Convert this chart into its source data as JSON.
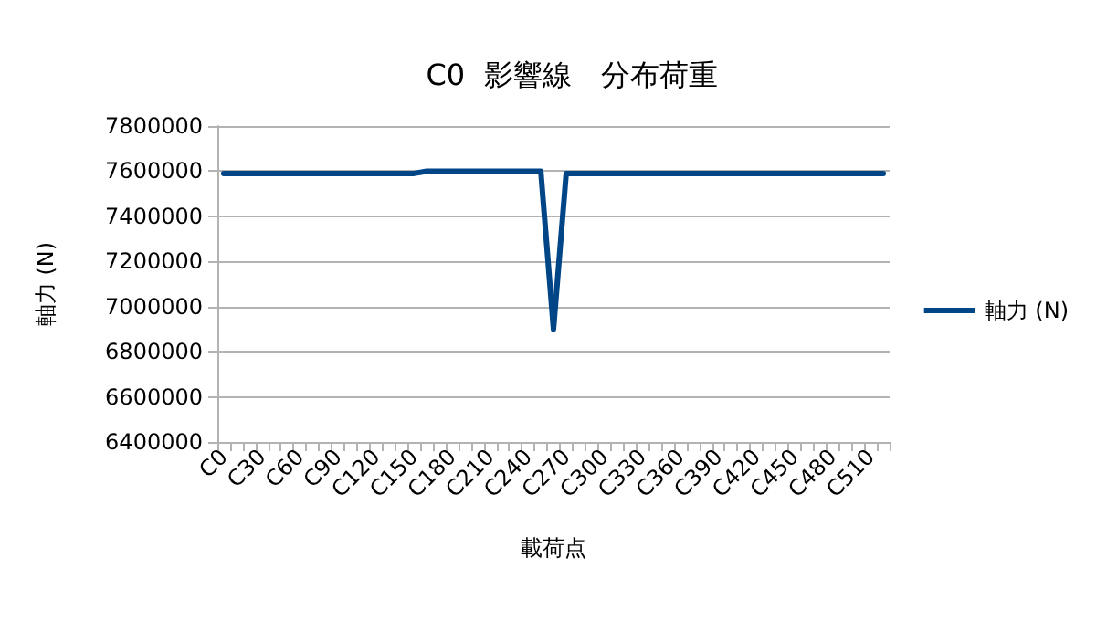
{
  "chart_data": {
    "type": "line",
    "title": "C0  影響線　分布荷重",
    "xlabel": "載荷点",
    "ylabel": "軸力 (N)",
    "categories": [
      "C0",
      null,
      null,
      "C30",
      null,
      null,
      "C60",
      null,
      null,
      "C90",
      null,
      null,
      "C120",
      null,
      null,
      "C150",
      null,
      null,
      "C180",
      null,
      null,
      "C210",
      null,
      null,
      "C240",
      null,
      null,
      "C270",
      null,
      null,
      "C300",
      null,
      null,
      "C330",
      null,
      null,
      "C360",
      null,
      null,
      "C390",
      null,
      null,
      "C420",
      null,
      null,
      "C450",
      null,
      null,
      "C480",
      null,
      null,
      "C510",
      null
    ],
    "series": [
      {
        "name": "軸力 (N)",
        "color": "#004586",
        "values": [
          7590000,
          7590000,
          7590000,
          7590000,
          7590000,
          7590000,
          7590000,
          7590000,
          7590000,
          7590000,
          7590000,
          7590000,
          7590000,
          7590000,
          7590000,
          7590000,
          7600000,
          7600000,
          7600000,
          7600000,
          7600000,
          7600000,
          7600000,
          7600000,
          7600000,
          7600000,
          6900000,
          7590000,
          7590000,
          7590000,
          7590000,
          7590000,
          7590000,
          7590000,
          7590000,
          7590000,
          7590000,
          7590000,
          7590000,
          7590000,
          7590000,
          7590000,
          7590000,
          7590000,
          7590000,
          7590000,
          7590000,
          7590000,
          7590000,
          7590000,
          7590000,
          7590000,
          7590000
        ]
      }
    ],
    "ylim": [
      6400000,
      7800000
    ],
    "yticks": [
      6400000,
      6600000,
      6800000,
      7000000,
      7200000,
      7400000,
      7600000,
      7800000
    ],
    "grid": "y",
    "legend": "right",
    "marker": "none",
    "line_style": "solid"
  }
}
